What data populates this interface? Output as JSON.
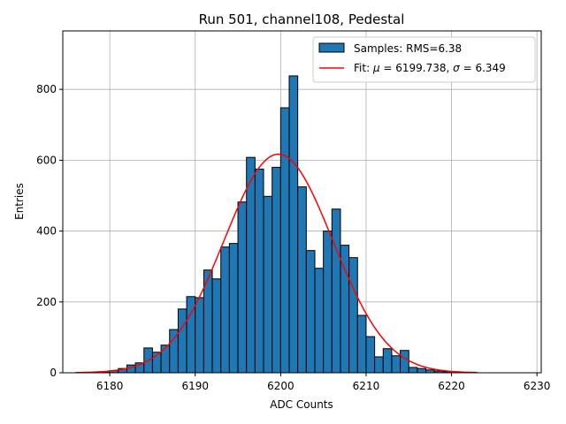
{
  "chart_data": {
    "type": "bar",
    "title": "Run 501, channel108, Pedestal",
    "xlabel": "ADC Counts",
    "ylabel": "Entries",
    "xlim": [
      6174.5,
      6230.5
    ],
    "ylim": [
      0,
      965
    ],
    "xticks": [
      6180,
      6190,
      6200,
      6210,
      6220,
      6230
    ],
    "yticks": [
      0,
      200,
      400,
      600,
      800
    ],
    "grid": true,
    "legend_position": "top-right",
    "bin_width": 1,
    "bin_starts": [
      6179,
      6180,
      6181,
      6182,
      6183,
      6184,
      6185,
      6186,
      6187,
      6188,
      6189,
      6190,
      6191,
      6192,
      6193,
      6194,
      6195,
      6196,
      6197,
      6198,
      6199,
      6200,
      6201,
      6202,
      6203,
      6204,
      6205,
      6206,
      6207,
      6208,
      6209,
      6210,
      6211,
      6212,
      6213,
      6214,
      6215,
      6216,
      6217,
      6218,
      6219
    ],
    "counts": [
      3,
      6,
      12,
      22,
      28,
      70,
      58,
      78,
      122,
      180,
      215,
      212,
      290,
      265,
      355,
      365,
      482,
      608,
      575,
      498,
      580,
      748,
      838,
      525,
      345,
      295,
      400,
      462,
      360,
      325,
      162,
      102,
      45,
      68,
      48,
      63,
      15,
      12,
      8,
      5,
      3
    ],
    "samples_color": "#1f77b4",
    "fit_color": "#ff0000",
    "fit": {
      "mu": 6199.738,
      "sigma": 6.349,
      "amplitude": 617,
      "x_range": [
        6176,
        6223
      ]
    },
    "legend": [
      {
        "kind": "patch",
        "label": "Samples: RMS=6.38"
      },
      {
        "kind": "line",
        "label_prefix": "Fit: ",
        "mu_symbol": "μ",
        "mu_text": " = 6199.738, ",
        "sigma_symbol": "σ",
        "sigma_text": " = 6.349"
      }
    ]
  }
}
